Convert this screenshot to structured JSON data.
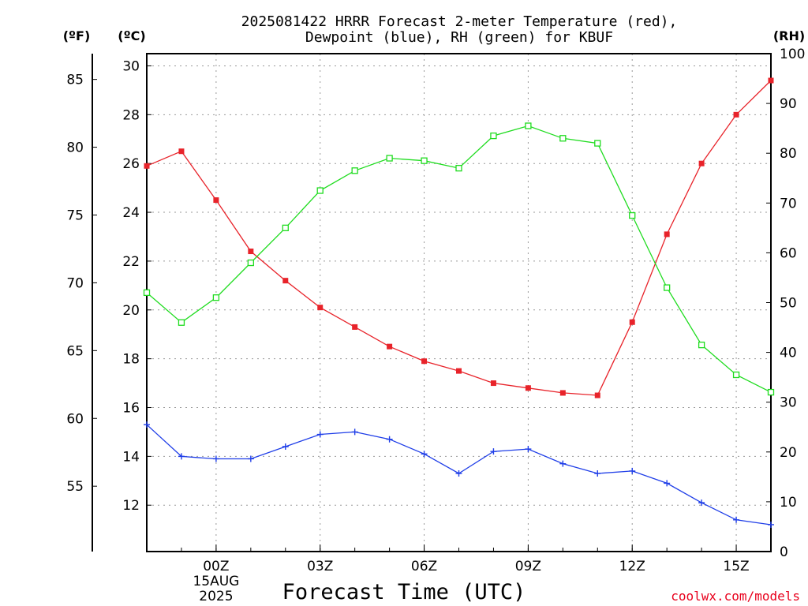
{
  "title_line1": "2025081422 HRRR Forecast 2-meter Temperature (red),",
  "title_line2": "Dewpoint (blue), RH (green) for KBUF",
  "units": {
    "fahrenheit": "(ºF)",
    "celsius": "(ºC)",
    "rh": "(RH)"
  },
  "credit": "coolwx.com/models",
  "colors": {
    "temperature": "#e8232a",
    "dewpoint": "#1f3ee8",
    "rh": "#1fdc1f"
  },
  "chart_data": {
    "type": "line",
    "title": "2025081422 HRRR Forecast 2-meter Temperature (red), Dewpoint (blue), RH (green) for KBUF",
    "xlabel": "Forecast Time (UTC)",
    "x_hours": [
      0,
      1,
      2,
      3,
      4,
      5,
      6,
      7,
      8,
      9,
      10,
      11,
      12,
      13,
      14,
      15,
      16,
      17,
      18
    ],
    "x_ticks": [
      {
        "hour": 2,
        "label": "00Z",
        "sub1": "15AUG",
        "sub2": "2025"
      },
      {
        "hour": 5,
        "label": "03Z",
        "sub1": "",
        "sub2": ""
      },
      {
        "hour": 8,
        "label": "06Z",
        "sub1": "",
        "sub2": ""
      },
      {
        "hour": 11,
        "label": "09Z",
        "sub1": "",
        "sub2": ""
      },
      {
        "hour": 14,
        "label": "12Z",
        "sub1": "",
        "sub2": ""
      },
      {
        "hour": 17,
        "label": "15Z",
        "sub1": "",
        "sub2": ""
      }
    ],
    "x_grid_hours": [
      2,
      5,
      8,
      11,
      14,
      17
    ],
    "celsius_axis": {
      "min": 10.1,
      "max": 30.5,
      "ticks": [
        12,
        14,
        16,
        18,
        20,
        22,
        24,
        26,
        28,
        30
      ]
    },
    "fahrenheit_axis": {
      "ticks": [
        55,
        60,
        65,
        70,
        75,
        80,
        85
      ]
    },
    "rh_axis": {
      "min": 0,
      "max": 100,
      "ticks": [
        0,
        10,
        20,
        30,
        40,
        50,
        60,
        70,
        80,
        90,
        100
      ]
    },
    "grid": true,
    "series": [
      {
        "name": "Temperature",
        "axis": "celsius",
        "marker": "filled-square",
        "values": [
          25.9,
          26.5,
          24.5,
          22.4,
          21.2,
          20.1,
          19.3,
          18.5,
          17.9,
          17.5,
          17.0,
          16.8,
          16.6,
          16.5,
          19.5,
          23.1,
          26.0,
          28.0,
          29.4
        ]
      },
      {
        "name": "Dewpoint",
        "axis": "celsius",
        "marker": "plus",
        "values": [
          15.3,
          14.0,
          13.9,
          13.9,
          14.4,
          14.9,
          15.0,
          14.7,
          14.1,
          13.3,
          14.2,
          14.3,
          13.7,
          13.3,
          13.4,
          12.9,
          12.1,
          11.4,
          11.2
        ]
      },
      {
        "name": "RH",
        "axis": "rh",
        "marker": "open-square",
        "values": [
          52,
          46,
          51,
          58,
          65,
          72.5,
          76.5,
          79,
          78.5,
          77,
          83.5,
          85.5,
          83,
          82,
          67.5,
          53,
          41.5,
          35.5,
          32
        ]
      }
    ]
  }
}
